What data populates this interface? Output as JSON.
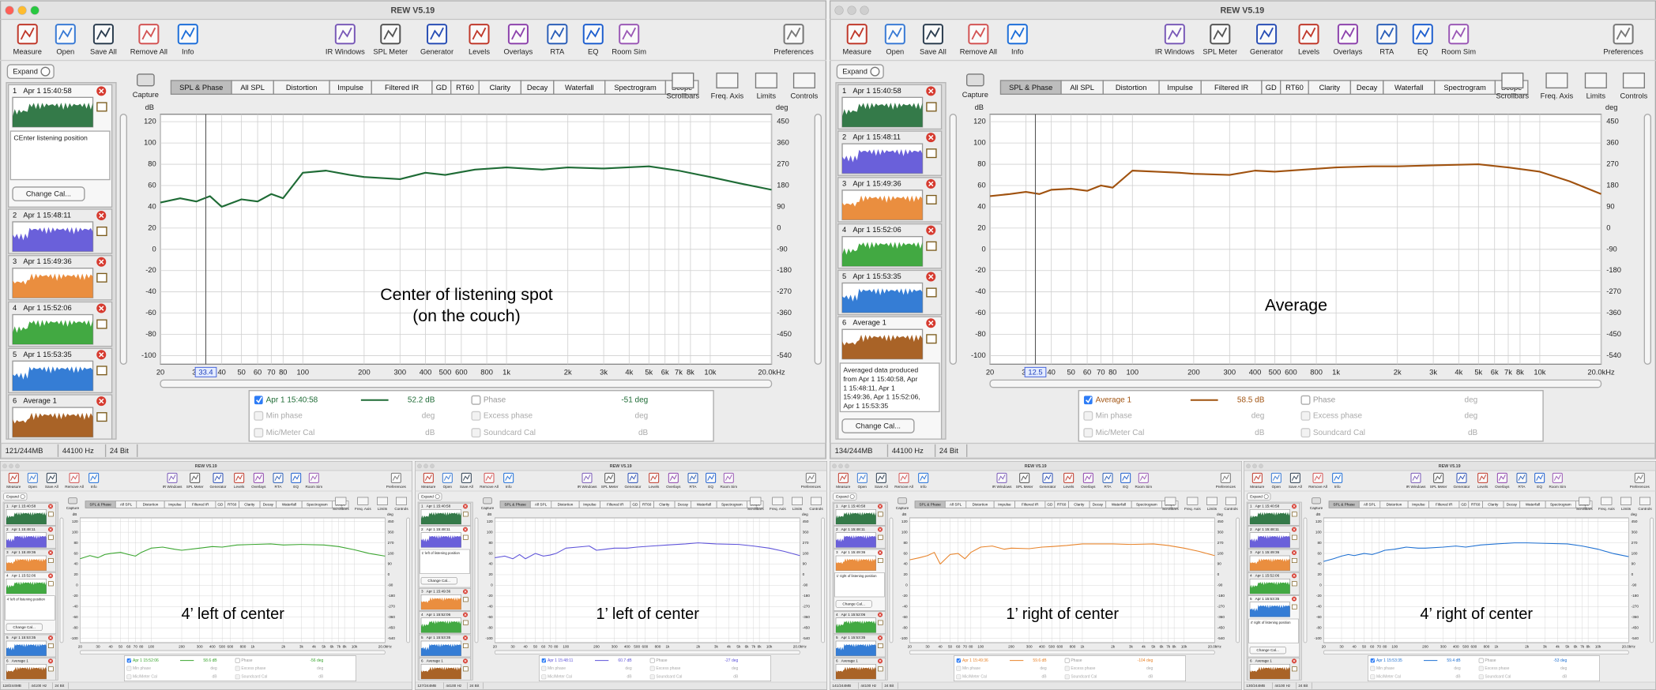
{
  "app": {
    "title": "REW V5.19",
    "toolbar": [
      "Measure",
      "Open",
      "Save All",
      "Remove All",
      "Info",
      "IR Windows",
      "SPL Meter",
      "Generator",
      "Levels",
      "Overlays",
      "RTA",
      "EQ",
      "Room Sim",
      "Preferences"
    ],
    "tabs": [
      "SPL & Phase",
      "All SPL",
      "Distortion",
      "Impulse",
      "Filtered IR",
      "GD",
      "RT60",
      "Clarity",
      "Decay",
      "Waterfall",
      "Spectrogram",
      "Scope"
    ],
    "capture": "Capture",
    "view_controls": [
      "Scrollbars",
      "Freq. Axis",
      "Limits",
      "Controls"
    ],
    "expand": "Expand",
    "change_cal": "Change Cal...",
    "y_unit": "dB",
    "y2_unit": "deg",
    "y_range": [
      -108,
      127
    ],
    "y_ticks": [
      120,
      100,
      80,
      60,
      40,
      20,
      0,
      -20,
      -40,
      -60,
      -80,
      -100
    ],
    "y2_ticks": [
      450,
      360,
      270,
      180,
      90,
      0,
      -90,
      -180,
      -270,
      -360,
      -450,
      -540
    ],
    "x_range": [
      20,
      20000
    ],
    "x_ticks": [
      20,
      30,
      40,
      50,
      60,
      70,
      80,
      100,
      200,
      300,
      400,
      500,
      600,
      800,
      {
        "value": 1000,
        "label": "1k"
      },
      {
        "value": 2000,
        "label": "2k"
      },
      {
        "value": 3000,
        "label": "3k"
      },
      {
        "value": 4000,
        "label": "4k"
      },
      {
        "value": 5000,
        "label": "5k"
      },
      {
        "value": 6000,
        "label": "6k"
      },
      {
        "value": 7000,
        "label": "7k"
      },
      {
        "value": 8000,
        "label": "8k"
      },
      {
        "value": 10000,
        "label": "10k"
      },
      {
        "value": 20000,
        "label": "20.0kHz"
      }
    ],
    "trace_freqs": [
      20,
      25,
      30,
      35,
      40,
      50,
      60,
      70,
      80,
      100,
      130,
      170,
      200,
      300,
      400,
      500,
      700,
      1000,
      1500,
      2000,
      3000,
      5000,
      7000,
      10000,
      14000,
      20000
    ],
    "legend_labels": {
      "phase": "Phase",
      "min_phase": "Min phase",
      "excess_phase": "Excess phase",
      "mic_cal": "Mic/Meter Cal",
      "soundcard_cal": "Soundcard Cal",
      "deg": "deg",
      "db": "dB"
    },
    "sample_rate": "44100 Hz",
    "bit_depth": "24 Bit",
    "measurements": [
      {
        "num": "1",
        "name": "Apr 1 15:40:58",
        "color": "#1e6b35"
      },
      {
        "num": "2",
        "name": "Apr 1 15:48:11",
        "color": "#5a4fd6"
      },
      {
        "num": "3",
        "name": "Apr 1 15:49:36",
        "color": "#e8822a"
      },
      {
        "num": "4",
        "name": "Apr 1 15:52:06",
        "color": "#2ea02e"
      },
      {
        "num": "5",
        "name": "Apr 1 15:53:35",
        "color": "#1f6fd0"
      },
      {
        "num": "6",
        "name": "Average 1",
        "color": "#a0520f"
      }
    ]
  },
  "windows": [
    {
      "annotation": [
        "Center of listening spot",
        "(on the couch)"
      ],
      "note": [
        "CEnter listening position"
      ],
      "cursor": "33.4",
      "legend": {
        "name": "Apr 1 15:40:58",
        "color": "#1e6b35",
        "value": "52.2 dB",
        "phase": "-51 deg"
      },
      "memory": "121/244MB",
      "trace": [
        44,
        48,
        45,
        50,
        40,
        47,
        45,
        52,
        48,
        72,
        74,
        70,
        68,
        66,
        72,
        70,
        75,
        77,
        75,
        77,
        76,
        78,
        74,
        68,
        62,
        56
      ]
    },
    {
      "annotation": [
        "Average"
      ],
      "note": [
        "Averaged data produced",
        "from Apr 1 15:40:58, Apr",
        "1 15:48:11, Apr 1",
        "15:49:36, Apr 1 15:52:06,",
        "Apr 1 15:53:35"
      ],
      "cursor": "12.5",
      "legend": {
        "name": "Average 1",
        "color": "#a0520f",
        "value": "58.5 dB",
        "phase": "deg"
      },
      "memory": "134/244MB",
      "trace": [
        50,
        52,
        54,
        52,
        56,
        57,
        55,
        60,
        58,
        74,
        73,
        72,
        71,
        70,
        74,
        73,
        75,
        77,
        78,
        78,
        79,
        80,
        77,
        73,
        64,
        52
      ]
    },
    {
      "annotation": [
        "4’ left of center"
      ],
      "note": [
        "4' left of listening position"
      ],
      "legend": {
        "name": "Apr 1 15:52:06",
        "color": "#3aa52f",
        "value": "58.6 dB",
        "phase": "-56 deg"
      },
      "memory": "118/244MB",
      "trace": [
        50,
        56,
        52,
        58,
        60,
        62,
        58,
        55,
        62,
        70,
        72,
        68,
        66,
        70,
        73,
        72,
        76,
        77,
        78,
        76,
        77,
        76,
        73,
        67,
        60,
        55
      ]
    },
    {
      "annotation": [
        "1’ left of center"
      ],
      "note": [
        "1' left of listening position"
      ],
      "legend": {
        "name": "Apr 1 15:48:11",
        "color": "#5d52d9",
        "value": "60.7 dB",
        "phase": "-27 deg"
      },
      "memory": "127/244MB",
      "trace": [
        52,
        55,
        50,
        58,
        50,
        60,
        55,
        57,
        60,
        70,
        72,
        74,
        66,
        70,
        70,
        72,
        74,
        76,
        78,
        80,
        78,
        77,
        74,
        70,
        64,
        56
      ]
    },
    {
      "annotation": [
        "1’ right of center"
      ],
      "note": [
        "1' right of listening position"
      ],
      "legend": {
        "name": "Apr 1 15:49:36",
        "color": "#e8842b",
        "value": "59.6 dB",
        "phase": "-104 deg"
      },
      "memory": "141/244MB",
      "trace": [
        48,
        52,
        56,
        62,
        40,
        58,
        60,
        50,
        62,
        72,
        74,
        68,
        70,
        69,
        72,
        73,
        75,
        78,
        78,
        78,
        77,
        78,
        75,
        70,
        64,
        56
      ]
    },
    {
      "annotation": [
        "4’ right of center"
      ],
      "note": [
        "4' right of listening position"
      ],
      "legend": {
        "name": "Apr 1 15:53:35",
        "color": "#1e70d2",
        "value": "59.4 dB",
        "phase": "-53 deg"
      },
      "memory": "130/244MB",
      "trace": [
        45,
        50,
        55,
        58,
        56,
        60,
        58,
        62,
        66,
        68,
        72,
        70,
        70,
        72,
        74,
        72,
        76,
        78,
        80,
        80,
        79,
        78,
        74,
        68,
        60,
        54
      ]
    }
  ]
}
